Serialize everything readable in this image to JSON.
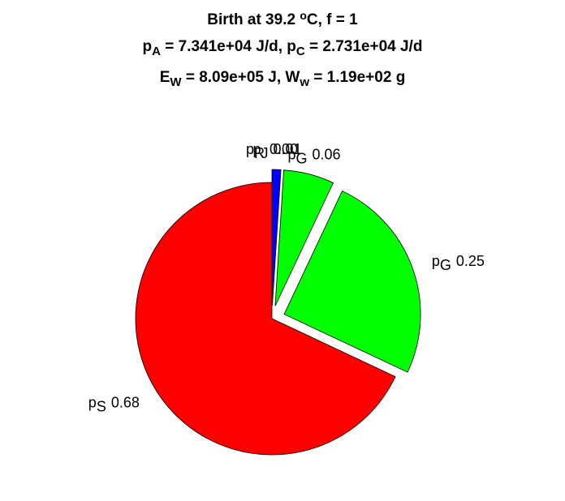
{
  "chart_data": {
    "type": "pie",
    "title": [
      [
        {
          "t": "Birth at 39.2 "
        },
        {
          "t": "o",
          "sup": true
        },
        {
          "t": "C, f = 1"
        }
      ],
      [
        {
          "t": "p"
        },
        {
          "t": "A",
          "sub": true
        },
        {
          "t": " = 7.341e+04 J/d, p"
        },
        {
          "t": "C",
          "sub": true
        },
        {
          "t": " = 2.731e+04 J/d"
        }
      ],
      [
        {
          "t": "E"
        },
        {
          "t": "W",
          "sub": true
        },
        {
          "t": " = 8.09e+05 J, W"
        },
        {
          "t": "w",
          "sub": true
        },
        {
          "t": " = 1.19e+02 g"
        }
      ]
    ],
    "labels": [
      "p",
      "p",
      "p",
      "p",
      "p"
    ],
    "subscripts": [
      "R",
      "J",
      "G",
      "G",
      "S"
    ],
    "values": [
      0.0,
      0.01,
      0.06,
      0.25,
      0.68
    ],
    "value_labels": [
      "0.00",
      "0.01",
      "0.06",
      "0.25",
      "0.68"
    ],
    "colors": [
      "#0000ff",
      "#0000ff",
      "#00ff00",
      "#00ff00",
      "#ff0000"
    ],
    "explode": [
      true,
      true,
      true,
      true,
      false
    ]
  }
}
